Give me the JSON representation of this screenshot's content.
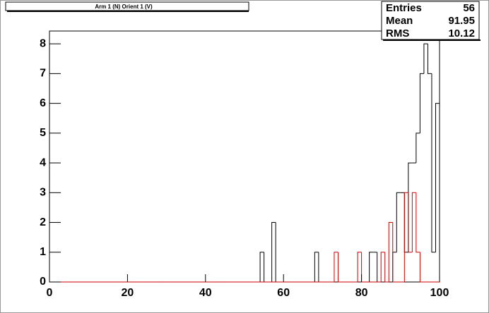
{
  "chart_data": {
    "type": "histogram",
    "title": "Arm 1 (N) Orient 1 (V)",
    "bins": [
      0,
      1,
      2,
      3,
      4,
      5,
      6,
      7,
      8,
      9,
      10,
      11,
      12,
      13,
      14,
      15,
      16,
      17,
      18,
      19,
      20,
      21,
      22,
      23,
      24,
      25,
      26,
      27,
      28,
      29,
      30,
      31,
      32,
      33,
      34,
      35,
      36,
      37,
      38,
      39,
      40,
      41,
      42,
      43,
      44,
      45,
      46,
      47,
      48,
      49,
      50,
      51,
      52,
      53,
      54,
      55,
      56,
      57,
      58,
      59,
      60,
      61,
      62,
      63,
      64,
      65,
      66,
      67,
      68,
      69,
      70,
      71,
      72,
      73,
      74,
      75,
      76,
      77,
      78,
      79,
      80,
      81,
      82,
      83,
      84,
      85,
      86,
      87,
      88,
      89,
      90,
      91,
      92,
      93,
      94,
      95,
      96,
      97,
      98,
      99,
      100
    ],
    "series": [
      {
        "color": "#000000",
        "values": [
          0,
          0,
          0,
          0,
          0,
          0,
          0,
          0,
          0,
          0,
          0,
          0,
          0,
          0,
          0,
          0,
          0,
          0,
          0,
          0,
          0,
          0,
          0,
          0,
          0,
          0,
          0,
          0,
          0,
          0,
          0,
          0,
          0,
          0,
          0,
          0,
          0,
          0,
          0,
          0,
          0,
          0,
          0,
          0,
          0,
          0,
          0,
          0,
          0,
          0,
          0,
          0,
          0,
          0,
          1,
          0,
          0,
          2,
          0,
          0,
          0,
          0,
          0,
          0,
          0,
          0,
          0,
          0,
          1,
          0,
          0,
          0,
          0,
          0,
          0,
          0,
          0,
          0,
          0,
          0,
          0,
          0,
          1,
          1,
          0,
          0,
          0,
          0,
          1,
          3,
          3,
          1,
          4,
          4,
          5,
          7,
          8,
          7,
          1,
          6
        ]
      },
      {
        "color": "#cc0000",
        "values": [
          0,
          0,
          0,
          0,
          0,
          0,
          0,
          0,
          0,
          0,
          0,
          0,
          0,
          0,
          0,
          0,
          0,
          0,
          0,
          0,
          0,
          0,
          0,
          0,
          0,
          0,
          0,
          0,
          0,
          0,
          0,
          0,
          0,
          0,
          0,
          0,
          0,
          0,
          0,
          0,
          0,
          0,
          0,
          0,
          0,
          0,
          0,
          0,
          0,
          0,
          0,
          0,
          0,
          0,
          0,
          0,
          0,
          0,
          0,
          0,
          0,
          0,
          0,
          0,
          0,
          0,
          0,
          0,
          0,
          0,
          0,
          0,
          0,
          1,
          0,
          0,
          0,
          0,
          0,
          1,
          0,
          0,
          0,
          0,
          0,
          1,
          0,
          2,
          0,
          0,
          0,
          3,
          1,
          3,
          1,
          0,
          0,
          0,
          0,
          0
        ]
      }
    ],
    "xlim": [
      0,
      100
    ],
    "ylim": [
      0,
      8.43
    ],
    "xticks": [
      0,
      20,
      40,
      60,
      80,
      100
    ],
    "yticks": [
      0,
      1,
      2,
      3,
      4,
      5,
      6,
      7,
      8
    ],
    "stats": [
      {
        "label": "Entries",
        "value": 56
      },
      {
        "label": "Mean",
        "value": 91.95
      },
      {
        "label": "RMS",
        "value": 10.12
      }
    ]
  }
}
